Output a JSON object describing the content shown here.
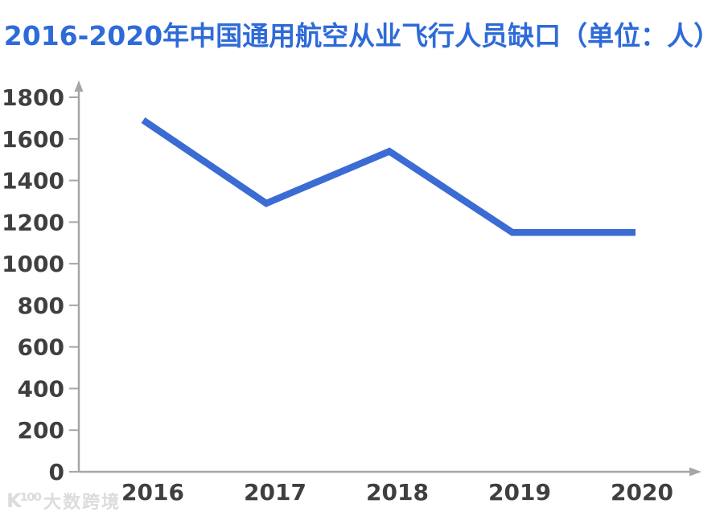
{
  "page": {
    "title": "2016-2020年中国通用航空从业飞行人员缺口（单位：人）",
    "title_color": "#2e6bd8",
    "background_color": "#ffffff"
  },
  "watermark": {
    "logo": "K¹⁰⁰",
    "text": "大数跨境",
    "color": "#dcdcdc"
  },
  "chart_data": {
    "type": "line",
    "title": "2016-2020年中国通用航空从业飞行人员缺口（单位：人）",
    "categories": [
      "2016",
      "2017",
      "2018",
      "2019",
      "2020"
    ],
    "series": [
      {
        "name": "通用航空从业飞行人员缺口",
        "values": [
          1690,
          1290,
          1540,
          1150,
          1150
        ]
      }
    ],
    "xlabel": "",
    "ylabel": "",
    "ylim": [
      0,
      1800
    ],
    "ytick_step": 200,
    "yticks": [
      0,
      200,
      400,
      600,
      800,
      1000,
      1200,
      1400,
      1600,
      1800
    ],
    "grid": false,
    "legend_position": "none",
    "line_color": "#3b6cd3",
    "axis_color": "#a6a6a6",
    "tick_label_color": "#3f3f3f"
  }
}
